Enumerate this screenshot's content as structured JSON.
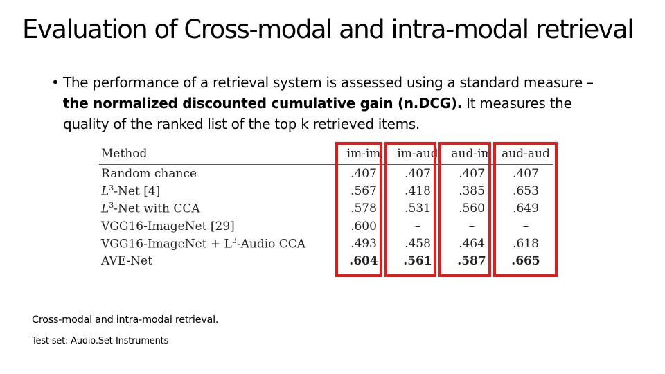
{
  "title": "Evaluation of Cross-modal and intra-modal retrieval",
  "bullet": {
    "marker": "•",
    "text_before": "The performance of a retrieval system is assessed using a standard measure – ",
    "bold": "the normalized discounted cumulative gain (n.DCG).",
    "text_after": " It measures the quality of the ranked list of the top k retrieved items."
  },
  "table": {
    "headers": [
      "Method",
      "im-im",
      "im-aud",
      "aud-im",
      "aud-aud"
    ],
    "rows": [
      {
        "method": "Random chance",
        "values": [
          ".407",
          ".407",
          ".407",
          ".407"
        ],
        "best": false
      },
      {
        "method_pre": "L",
        "method_sup": "3",
        "method_post": "-Net [4]",
        "values": [
          ".567",
          ".418",
          ".385",
          ".653"
        ],
        "best": false
      },
      {
        "method_pre": "L",
        "method_sup": "3",
        "method_post": "-Net with CCA",
        "values": [
          ".578",
          ".531",
          ".560",
          ".649"
        ],
        "best": false
      },
      {
        "method": "VGG16-ImageNet [29]",
        "values": [
          ".600",
          "–",
          "–",
          "–"
        ],
        "best": false
      },
      {
        "method_pre": "VGG16-ImageNet + L",
        "method_sup": "3",
        "method_post": "-Audio CCA",
        "values": [
          ".493",
          ".458",
          ".464",
          ".618"
        ],
        "best": false
      },
      {
        "method": "AVE-Net",
        "values": [
          ".604",
          ".561",
          ".587",
          ".665"
        ],
        "best": true
      }
    ],
    "highlight_color": "#e31b1b"
  },
  "caption": "Cross-modal and intra-modal retrieval.",
  "test_set": "Test set: Audio.Set-Instruments"
}
